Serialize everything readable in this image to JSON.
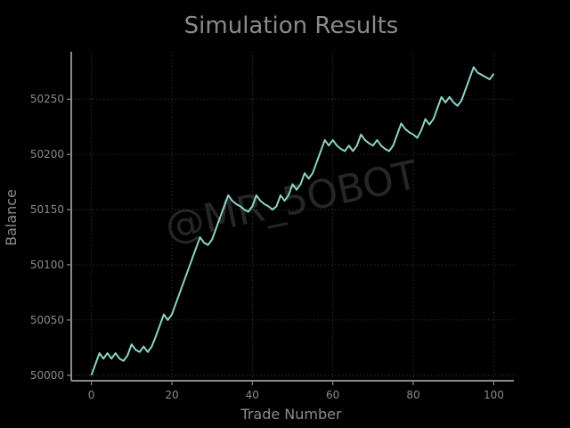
{
  "chart_data": {
    "type": "line",
    "title": "Simulation Results",
    "xlabel": "Trade Number",
    "ylabel": "Balance",
    "xlim": [
      -5,
      105
    ],
    "ylim": [
      49995,
      50293
    ],
    "x_ticks": [
      0,
      20,
      40,
      60,
      80,
      100
    ],
    "y_ticks": [
      50000,
      50050,
      50100,
      50150,
      50200,
      50250
    ],
    "grid": true,
    "legend": "none",
    "watermark": "@MR_5OBOT",
    "colors": {
      "background": "#000000",
      "line": "#8dd3c7",
      "axis": "#8a8a8a",
      "grid": "#3a3a3a",
      "text": "#8a8a8a"
    },
    "series": [
      {
        "x": [
          0,
          1,
          2,
          3,
          4,
          5,
          6,
          7,
          8,
          9,
          10,
          11,
          12,
          13,
          14,
          15,
          16,
          17,
          18,
          19,
          20,
          21,
          22,
          23,
          24,
          25,
          26,
          27,
          28,
          29,
          30,
          31,
          32,
          33,
          34,
          35,
          36,
          37,
          38,
          39,
          40,
          41,
          42,
          43,
          44,
          45,
          46,
          47,
          48,
          49,
          50,
          51,
          52,
          53,
          54,
          55,
          56,
          57,
          58,
          59,
          60,
          61,
          62,
          63,
          64,
          65,
          66,
          67,
          68,
          69,
          70,
          71,
          72,
          73,
          74,
          75,
          76,
          77,
          78,
          79,
          80,
          81,
          82,
          83,
          84,
          85,
          86,
          87,
          88,
          89,
          90,
          91,
          92,
          93,
          94,
          95,
          96,
          97,
          98,
          99,
          100
        ],
        "y": [
          50000,
          50010,
          50020,
          50015,
          50020,
          50015,
          50020,
          50015,
          50013,
          50018,
          50028,
          50023,
          50021,
          50026,
          50021,
          50026,
          50035,
          50045,
          50055,
          50050,
          50055,
          50065,
          50075,
          50085,
          50095,
          50105,
          50115,
          50125,
          50120,
          50118,
          50123,
          50133,
          50143,
          50153,
          50163,
          50158,
          50155,
          50153,
          50150,
          50148,
          50153,
          50163,
          50158,
          50155,
          50153,
          50150,
          50153,
          50163,
          50158,
          50163,
          50173,
          50168,
          50173,
          50183,
          50178,
          50183,
          50193,
          50203,
          50213,
          50208,
          50213,
          50208,
          50205,
          50203,
          50208,
          50203,
          50208,
          50218,
          50213,
          50210,
          50208,
          50213,
          50208,
          50205,
          50203,
          50208,
          50218,
          50228,
          50223,
          50220,
          50218,
          50215,
          50222,
          50232,
          50227,
          50232,
          50242,
          50252,
          50247,
          50252,
          50247,
          50244,
          50249,
          50259,
          50269,
          50279,
          50274,
          50272,
          50270,
          50268,
          50273
        ]
      }
    ]
  }
}
